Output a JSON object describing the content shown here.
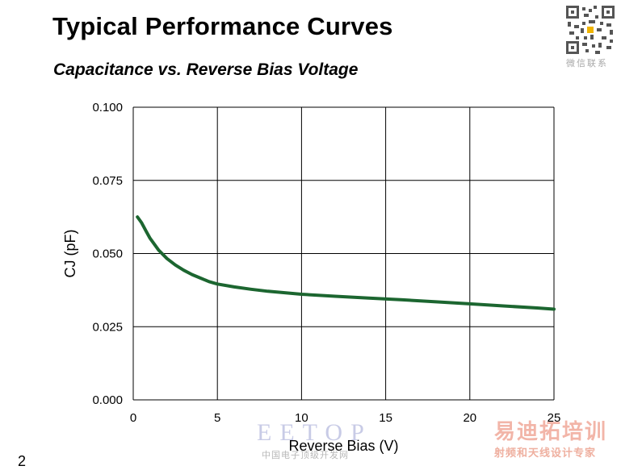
{
  "header": {
    "title": "Typical Performance Curves",
    "subtitle": "Capacitance vs. Reverse Bias Voltage"
  },
  "qr": {
    "caption": "微信联系"
  },
  "footer": {
    "page_number": "2"
  },
  "watermarks": {
    "left_logo": "EETOP",
    "left_caption": "中国电子顶级开发网",
    "right_logo": "易迪拓培训",
    "right_caption": "射频和天线设计专家"
  },
  "colors": {
    "curve": "#1c6630",
    "grid": "#000000"
  },
  "chart_data": {
    "type": "line",
    "xlabel": "Reverse Bias (V)",
    "ylabel": "CJ (pF)",
    "xlim": [
      0,
      25
    ],
    "ylim": [
      0,
      0.1
    ],
    "xticks": [
      "0",
      "5",
      "10",
      "15",
      "20",
      "25"
    ],
    "yticks": [
      "0.100",
      "0.075",
      "0.050",
      "0.025",
      "0.000"
    ],
    "grid": true,
    "series": [
      {
        "values_x": [
          0.25,
          0.5,
          0.75,
          1.0,
          1.5,
          2.0,
          2.5,
          3.0,
          3.5,
          4.0,
          4.5,
          5.0,
          6.0,
          7.0,
          8.0,
          9.0,
          10.0,
          12.0,
          14.0,
          16.0,
          18.0,
          20.0,
          22.0,
          24.0,
          25.0
        ],
        "values_y": [
          0.0625,
          0.0605,
          0.0578,
          0.0552,
          0.0512,
          0.0483,
          0.0461,
          0.0443,
          0.0428,
          0.0416,
          0.0404,
          0.0396,
          0.0386,
          0.0378,
          0.0371,
          0.0366,
          0.0361,
          0.0354,
          0.0348,
          0.0342,
          0.0335,
          0.0328,
          0.0321,
          0.0314,
          0.031
        ]
      }
    ]
  }
}
